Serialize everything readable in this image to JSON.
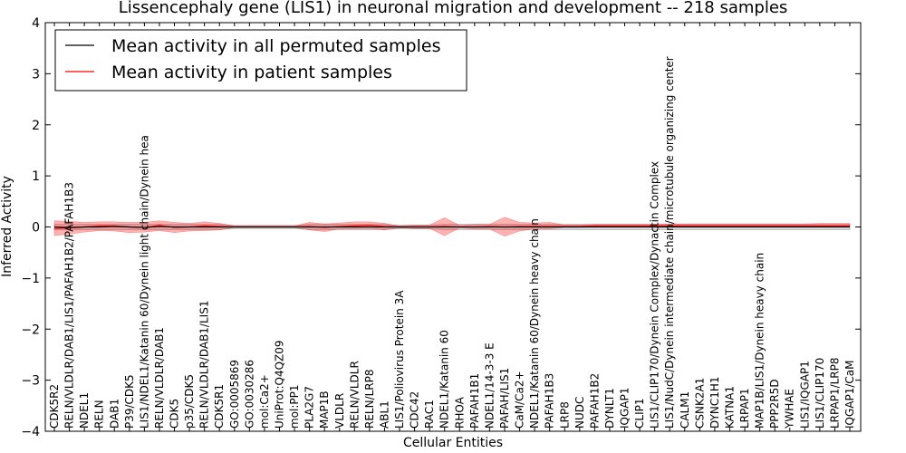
{
  "chart_data": {
    "type": "line",
    "title": "Lissencephaly gene (LIS1) in neuronal migration and development -- 218 samples",
    "xlabel": "Cellular Entities",
    "ylabel": "Inferred Activity",
    "ylim": [
      -4,
      4
    ],
    "yticks": [
      4,
      3,
      2,
      1,
      0,
      -1,
      -2,
      -3,
      -4
    ],
    "ytick_labels": [
      "4",
      "3",
      "2",
      "1",
      "0",
      "−1",
      "−2",
      "−3",
      "−4"
    ],
    "grid": false,
    "legend_position": "top-left",
    "categories": [
      "CDK5R2",
      "RELN/VLDLR/DAB1/LIS1/PAFAH1B2/PAFAH1B3",
      "NDEL1",
      "RELN",
      "DAB1",
      "P39/CDK5",
      "LIS1/NDEL1/Katanin 60/Dynein light chain/Dynein hea",
      "RELN/VLDLR/DAB1",
      "CDK5",
      "p35/CDK5",
      "RELN/VLDLR/DAB1/LIS1",
      "CDK5R1",
      "GO:0005869",
      "GO:0030286",
      "mol:Ca2+",
      "UniProt:Q4QZ09",
      "mol:PP1",
      "PLA2G7",
      "MAP1B",
      "VLDLR",
      "RELN/VLDLR",
      "RELN/LRP8",
      "ABL1",
      "LIS1/Poliovirus Protein 3A",
      "CDC42",
      "RAC1",
      "NDEL1/Katanin 60",
      "RHOA",
      "PAFAH1B1",
      "NDEL1/14-3-3 E",
      "PAFAH/LIS1",
      "CaM/Ca2+",
      "NDEL1/Katanin 60/Dynein heavy chain",
      "PAFAH1B3",
      "LRP8",
      "NUDC",
      "PAFAH1B2",
      "DYNLT1",
      "IQGAP1",
      "CLIP1",
      "LIS1/CLIP170/Dynein Complex/Dynactin Complex",
      "LIS1/NudC/Dynein intermediate chain/microtubule organizing center",
      "CALM1",
      "CSNK2A1",
      "DYNC1H1",
      "KATNA1",
      "LRPAP1",
      "MAP1B/LIS1/Dynein heavy chain",
      "PPP2R5D",
      "YWHAE",
      "LIS1/IQGAP1",
      "LIS1/CLIP170",
      "LRPAP1/LRP8",
      "IQGAP1/CaM"
    ],
    "series": [
      {
        "name": "Mean activity in all permuted samples",
        "color": "#000000",
        "values": [
          0.0,
          -0.01,
          0.0,
          0.0,
          0.01,
          0.0,
          -0.01,
          0.01,
          0.0,
          0.0,
          0.0,
          0.0,
          0.0,
          0.0,
          0.0,
          0.0,
          0.0,
          0.0,
          0.0,
          0.0,
          0.0,
          0.0,
          0.0,
          0.0,
          0.0,
          0.0,
          0.0,
          0.0,
          0.0,
          0.0,
          0.0,
          0.0,
          0.0,
          0.0,
          0.0,
          0.0,
          0.0,
          0.0,
          0.0,
          0.0,
          0.0,
          0.0,
          0.0,
          0.0,
          0.0,
          0.0,
          0.0,
          0.0,
          0.0,
          0.0,
          0.0,
          0.0,
          0.0,
          0.0
        ],
        "band_lower": [
          -0.06,
          -0.06,
          -0.05,
          -0.05,
          -0.05,
          -0.05,
          -0.05,
          -0.05,
          -0.05,
          -0.05,
          -0.05,
          -0.05,
          -0.03,
          -0.03,
          -0.03,
          -0.03,
          -0.03,
          -0.05,
          -0.05,
          -0.05,
          -0.05,
          -0.05,
          -0.05,
          -0.03,
          -0.04,
          -0.04,
          -0.05,
          -0.05,
          -0.05,
          -0.05,
          -0.05,
          -0.05,
          -0.05,
          -0.05,
          -0.05,
          -0.05,
          -0.05,
          -0.05,
          -0.05,
          -0.05,
          -0.05,
          -0.05,
          -0.05,
          -0.05,
          -0.05,
          -0.05,
          -0.05,
          -0.05,
          -0.05,
          -0.05,
          -0.05,
          -0.05,
          -0.05,
          -0.05
        ],
        "band_upper": [
          0.05,
          0.05,
          0.05,
          0.05,
          0.05,
          0.05,
          0.05,
          0.05,
          0.05,
          0.05,
          0.05,
          0.05,
          0.03,
          0.03,
          0.03,
          0.03,
          0.03,
          0.05,
          0.05,
          0.05,
          0.05,
          0.05,
          0.05,
          0.03,
          0.04,
          0.04,
          0.05,
          0.05,
          0.05,
          0.05,
          0.05,
          0.05,
          0.05,
          0.05,
          0.05,
          0.05,
          0.05,
          0.05,
          0.05,
          0.05,
          0.05,
          0.05,
          0.05,
          0.05,
          0.05,
          0.05,
          0.05,
          0.05,
          0.05,
          0.05,
          0.05,
          0.05,
          0.05,
          0.05
        ]
      },
      {
        "name": "Mean activity in patient samples",
        "color": "#ff0000",
        "values": [
          -0.03,
          -0.02,
          0.0,
          0.02,
          0.02,
          0.0,
          -0.01,
          0.03,
          -0.01,
          0.0,
          0.02,
          0.01,
          0.0,
          0.0,
          0.0,
          0.0,
          0.0,
          0.01,
          -0.01,
          0.01,
          0.02,
          0.03,
          0.01,
          0.0,
          0.0,
          0.0,
          0.01,
          0.0,
          0.0,
          0.01,
          0.0,
          0.01,
          0.01,
          0.01,
          0.01,
          0.01,
          0.02,
          0.02,
          0.02,
          0.02,
          0.02,
          0.02,
          0.02,
          0.02,
          0.02,
          0.02,
          0.02,
          0.02,
          0.02,
          0.02,
          0.02,
          0.02,
          0.02,
          0.02
        ],
        "band_lower": [
          -0.17,
          -0.14,
          -0.1,
          -0.07,
          -0.08,
          -0.11,
          -0.1,
          -0.07,
          -0.11,
          -0.08,
          -0.07,
          -0.06,
          -0.01,
          -0.01,
          -0.01,
          -0.01,
          -0.01,
          -0.06,
          -0.09,
          -0.04,
          -0.04,
          -0.03,
          -0.06,
          -0.02,
          -0.03,
          -0.03,
          -0.17,
          -0.02,
          -0.04,
          -0.04,
          -0.18,
          -0.08,
          -0.04,
          -0.04,
          -0.01,
          -0.01,
          0.0,
          0.0,
          0.0,
          0.0,
          0.0,
          0.0,
          0.0,
          0.0,
          0.0,
          0.0,
          0.0,
          0.0,
          0.0,
          0.0,
          0.0,
          0.0,
          0.0,
          0.0
        ],
        "band_upper": [
          0.12,
          0.11,
          0.09,
          0.1,
          0.1,
          0.09,
          0.09,
          0.12,
          0.09,
          0.07,
          0.1,
          0.07,
          0.02,
          0.02,
          0.02,
          0.02,
          0.02,
          0.09,
          0.06,
          0.08,
          0.1,
          0.1,
          0.07,
          0.02,
          0.04,
          0.04,
          0.18,
          0.03,
          0.05,
          0.05,
          0.19,
          0.09,
          0.08,
          0.09,
          0.04,
          0.04,
          0.05,
          0.05,
          0.05,
          0.05,
          0.05,
          0.06,
          0.06,
          0.06,
          0.06,
          0.06,
          0.06,
          0.06,
          0.06,
          0.06,
          0.06,
          0.07,
          0.07,
          0.07
        ]
      }
    ]
  }
}
